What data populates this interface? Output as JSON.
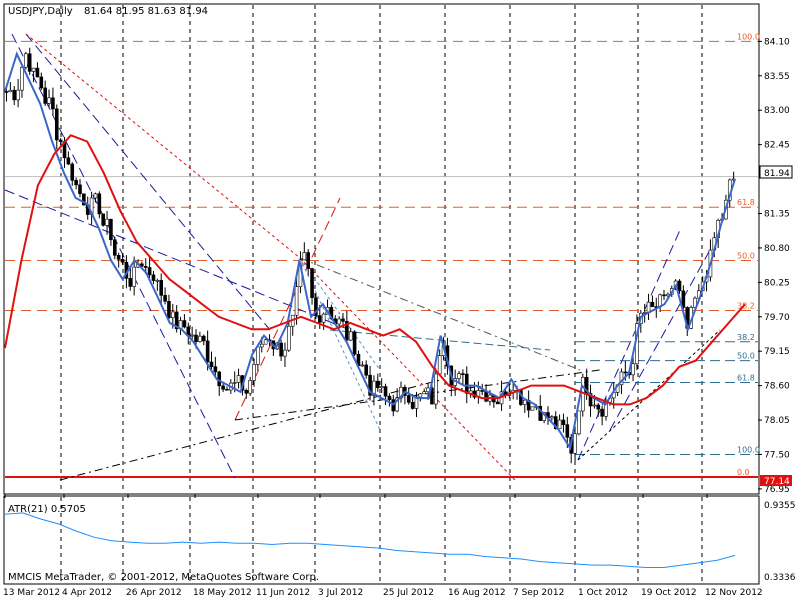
{
  "header": {
    "symbol": "USDJPY,Daily",
    "ohlc": "81.64 81.95 81.63 81.94"
  },
  "indicator": {
    "label": "ATR(21) 0.5705",
    "axis_top": "0.9355",
    "axis_bottom": "0.3336"
  },
  "watermark": "MMCIS MetaTrader, © 2001-2012, MetaQuotes Software Corp.",
  "price_axis": {
    "ticks": [
      "84.10",
      "83.55",
      "83.00",
      "82.45",
      "81.35",
      "80.80",
      "80.25",
      "79.70",
      "79.15",
      "78.60",
      "78.05",
      "77.50",
      "76.95"
    ],
    "current_price": "81.94",
    "support_price": "77.14"
  },
  "time_axis": {
    "labels": [
      "13 Mar 2012",
      "4 Apr 2012",
      "26 Apr 2012",
      "18 May 2012",
      "11 Jun 2012",
      "3 Jul 2012",
      "25 Jul 2012",
      "16 Aug 2012",
      "7 Sep 2012",
      "1 Oct 2012",
      "19 Oct 2012",
      "12 Nov 2012"
    ]
  },
  "fibonacci_main": {
    "levels": [
      "100.0",
      "61.8",
      "50.0",
      "38.2",
      "0.0"
    ],
    "color": "#e0602a"
  },
  "fibonacci_secondary": {
    "levels": [
      "38.2",
      "50.0",
      "61.8",
      "100.0"
    ],
    "color": "#2f6e8e"
  },
  "colors": {
    "candles": "#000000",
    "ma_fast": "#3a66c8",
    "ma_slow": "#e01010",
    "atr": "#1e90ff",
    "grid": "#000000"
  },
  "chart_data": {
    "type": "line",
    "series": [
      {
        "values": [
          83.3,
          83.9,
          83.5,
          83.1,
          82.5,
          82.0,
          81.6,
          81.5,
          81.1,
          80.6,
          80.3,
          80.6,
          80.4,
          80.0,
          79.6,
          79.5,
          79.3,
          79.0,
          78.7,
          78.6,
          78.5,
          79.1,
          79.4,
          79.2,
          79.6,
          80.6,
          79.7,
          79.9,
          79.6,
          79.3,
          78.9,
          78.5,
          78.4,
          78.3,
          78.5,
          78.4,
          78.4,
          79.4,
          78.7,
          78.6,
          78.6,
          78.5,
          78.4,
          78.7,
          78.4,
          78.3,
          78.1,
          77.9,
          77.6,
          78.6,
          78.4,
          78.3,
          78.6,
          78.8,
          79.7,
          79.8,
          79.9,
          80.2,
          79.5,
          80.0,
          80.6,
          81.3,
          81.9
        ]
      },
      {
        "values": [
          79.2,
          80.6,
          81.8,
          82.3,
          82.6,
          82.5,
          82.0,
          81.4,
          80.9,
          80.6,
          80.3,
          80.1,
          79.9,
          79.7,
          79.6,
          79.5,
          79.5,
          79.6,
          79.7,
          79.6,
          79.5,
          79.6,
          79.5,
          79.4,
          79.5,
          79.3,
          78.9,
          78.6,
          78.5,
          78.4,
          78.4,
          78.5,
          78.6,
          78.6,
          78.6,
          78.5,
          78.4,
          78.3,
          78.3,
          78.4,
          78.6,
          78.9,
          79.0,
          79.3,
          79.6,
          79.9
        ]
      }
    ],
    "atr": {
      "values": [
        0.86,
        0.87,
        0.82,
        0.78,
        0.72,
        0.67,
        0.64,
        0.63,
        0.62,
        0.62,
        0.63,
        0.62,
        0.63,
        0.62,
        0.62,
        0.61,
        0.62,
        0.62,
        0.61,
        0.6,
        0.59,
        0.58,
        0.56,
        0.55,
        0.54,
        0.53,
        0.53,
        0.51,
        0.5,
        0.49,
        0.47,
        0.46,
        0.45,
        0.44,
        0.44,
        0.43,
        0.42,
        0.42,
        0.44,
        0.46,
        0.48,
        0.52
      ]
    }
  }
}
